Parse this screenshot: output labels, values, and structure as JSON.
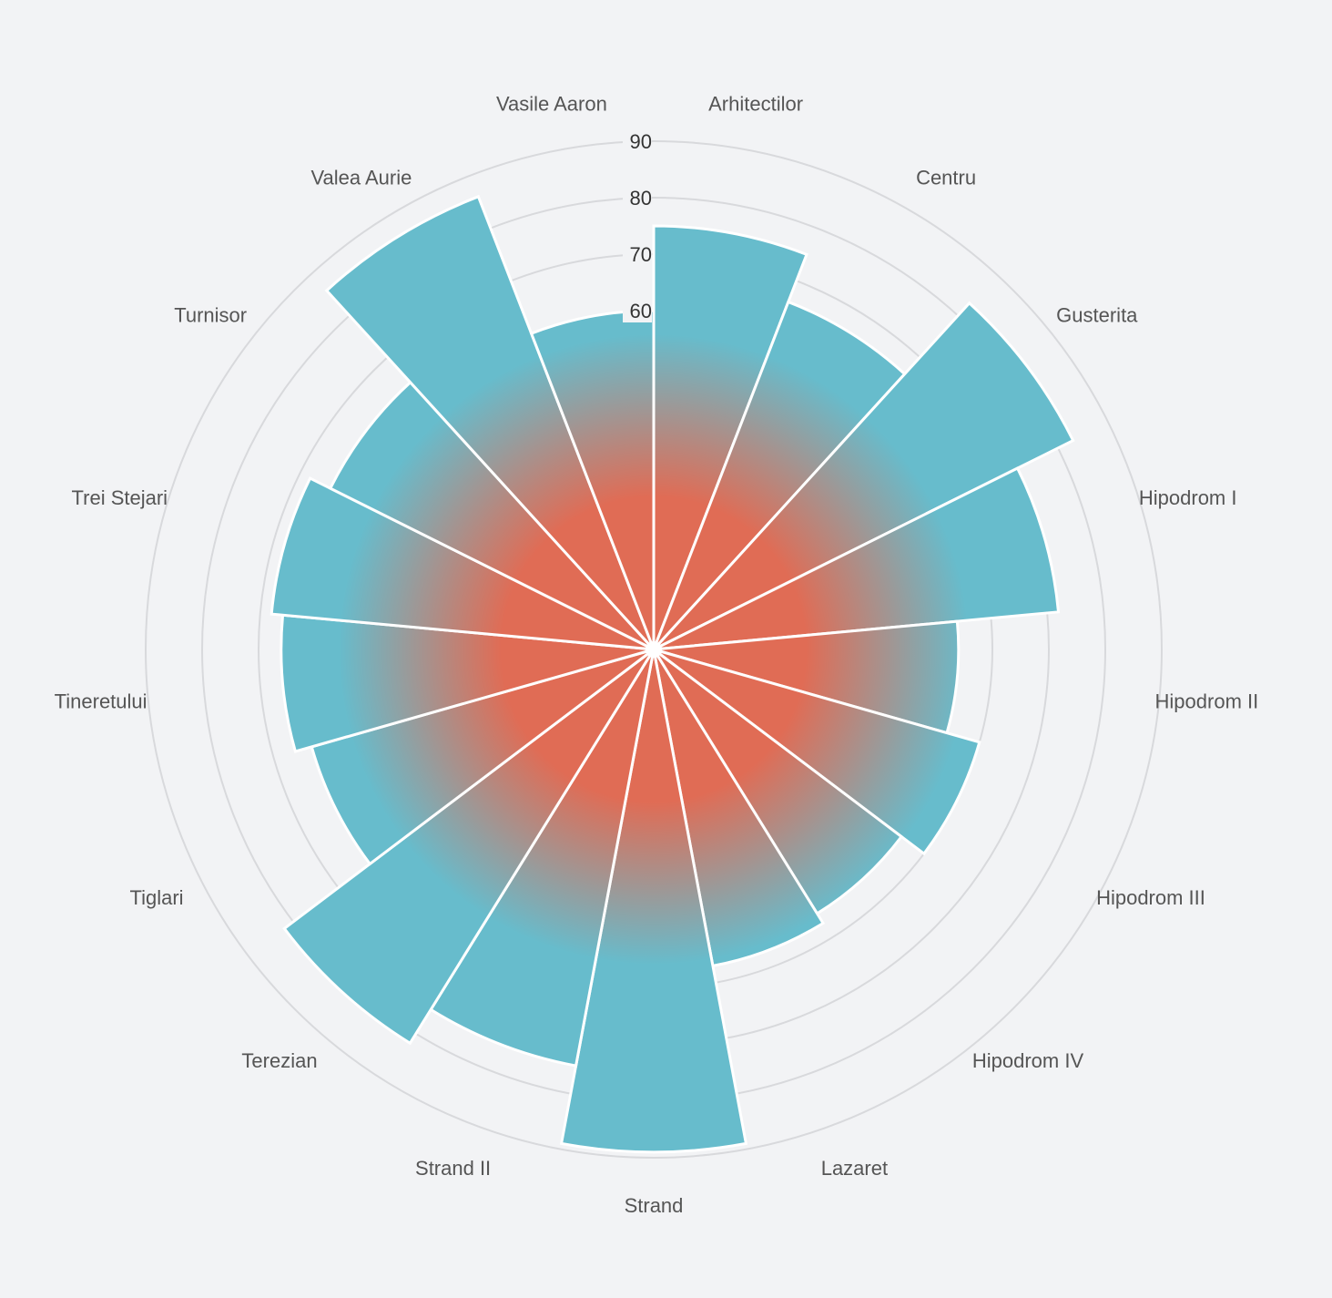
{
  "chart_data": {
    "type": "polar-bar",
    "categories": [
      "Arhitectilor",
      "Centru",
      "Gusterita",
      "Hipodrom I",
      "Hipodrom II",
      "Hipodrom III",
      "Hipodrom IV",
      "Lazaret",
      "Strand",
      "Strand II",
      "Terezian",
      "Tiglari",
      "Tineretului",
      "Trei Stejari",
      "Turnisor",
      "Valea Aurie",
      "Vasile Aaron"
    ],
    "values": [
      75,
      66,
      83,
      72,
      54,
      60,
      55,
      57,
      89,
      75,
      82,
      63,
      66,
      68,
      64,
      86,
      60
    ],
    "radial_ticks": [
      60,
      70,
      80,
      90
    ],
    "rmax": 90,
    "gradient": {
      "inner_color": "#e06c55",
      "outer_color": "#67bccc"
    },
    "grid": true,
    "colors": {
      "bar_outer": "#67bccc",
      "bar_inner": "#e06c55",
      "bar_edge": "#ffffff",
      "grid": "#d8d9dc",
      "background": "#f2f3f5"
    }
  }
}
